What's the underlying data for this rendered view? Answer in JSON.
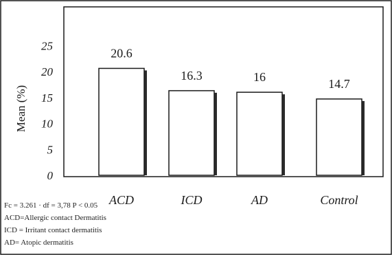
{
  "chart_data": {
    "type": "bar",
    "title": "",
    "xlabel": "",
    "ylabel": "Mean (%)",
    "categories": [
      "ACD",
      "ICD",
      "AD",
      "Control"
    ],
    "values": [
      20.6,
      16.3,
      16,
      14.7
    ],
    "value_labels": [
      "20.6",
      "16.3",
      "16",
      "14.7"
    ],
    "yticks": [
      "0",
      "5",
      "10",
      "15",
      "20",
      "25"
    ],
    "ylim": [
      0,
      30
    ],
    "grid": false,
    "legend": "none"
  },
  "footnotes": [
    "Fc = 3.261 ·   df = 3,78 P < 0.05",
    "ACD=Allergic contact Dermatitis",
    "ICD = Irritant contact dermatitis",
    "AD= Atopic dermatitis"
  ],
  "colors": {
    "bar_fill": "#ffffff",
    "bar_stroke": "#1a1a1a",
    "bar_shadow": "#2b2b2b",
    "axis": "#1a1a1a"
  }
}
